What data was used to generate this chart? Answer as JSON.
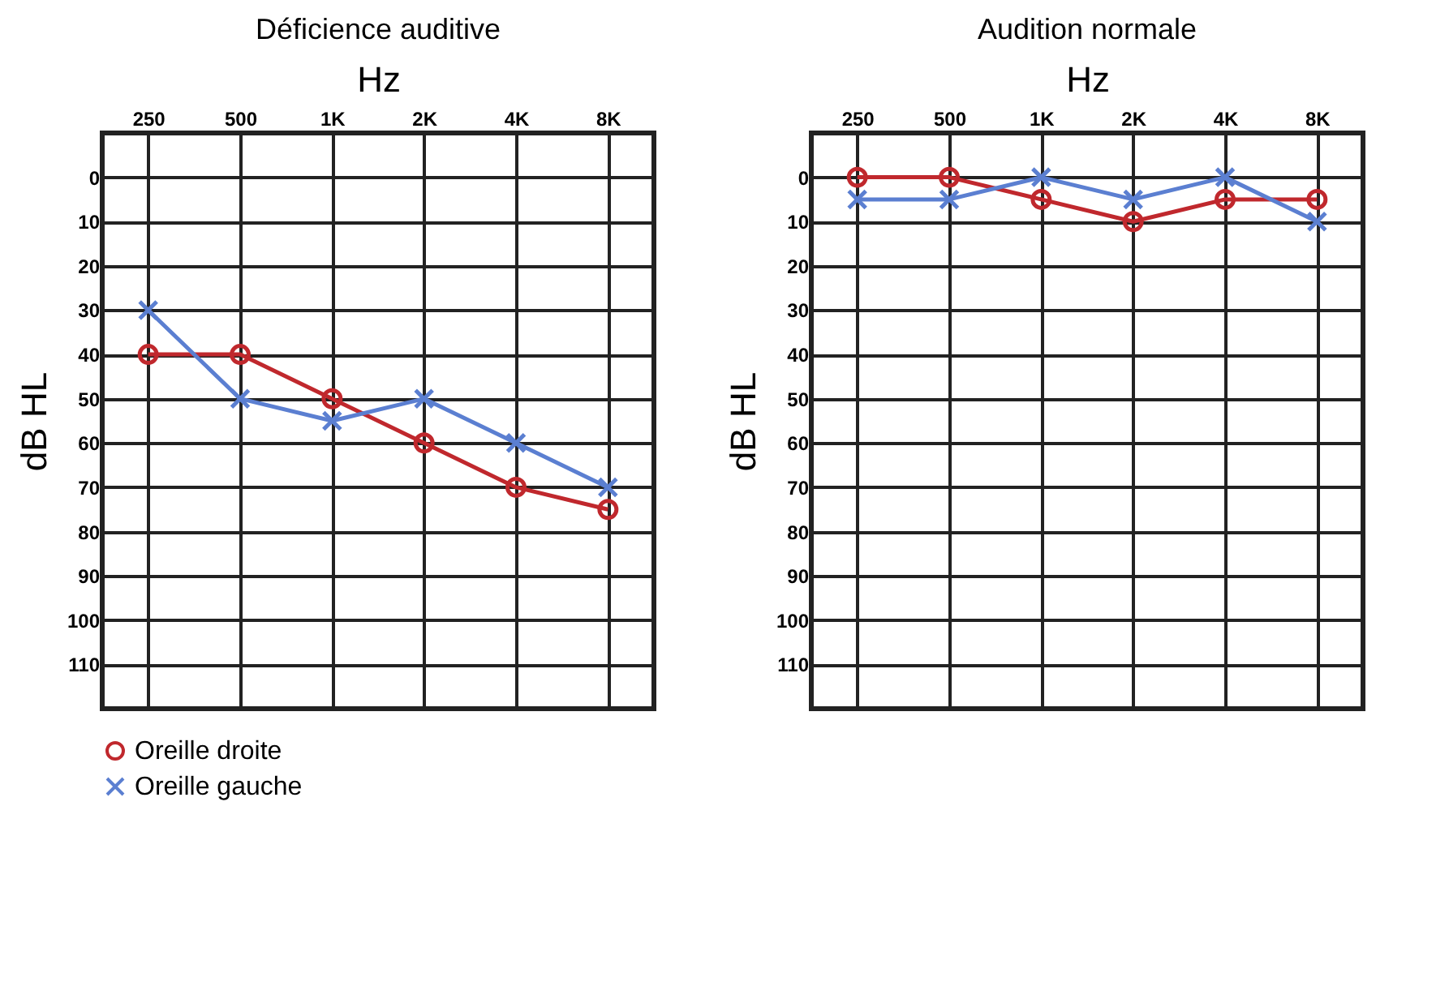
{
  "chart_data": [
    {
      "type": "line",
      "title": "Déficience auditive",
      "xlabel": "Hz",
      "ylabel": "dB HL",
      "categories": [
        "250",
        "500",
        "1K",
        "2K",
        "4K",
        "8K"
      ],
      "ylim": [
        120,
        -10
      ],
      "yticks": [
        0,
        10,
        20,
        30,
        40,
        50,
        60,
        70,
        80,
        90,
        100,
        110
      ],
      "grid": true,
      "legend": "bottom left",
      "series": [
        {
          "name": "Oreille droite",
          "color": "#c0282d",
          "marker": "circle",
          "values": [
            40,
            40,
            50,
            60,
            70,
            75
          ]
        },
        {
          "name": "Oreille gauche",
          "color": "#5b7fd1",
          "marker": "cross",
          "values": [
            30,
            50,
            55,
            50,
            60,
            70
          ]
        }
      ]
    },
    {
      "type": "line",
      "title": "Audition normale",
      "xlabel": "Hz",
      "ylabel": "dB HL",
      "categories": [
        "250",
        "500",
        "1K",
        "2K",
        "4K",
        "8K"
      ],
      "ylim": [
        120,
        -10
      ],
      "yticks": [
        0,
        10,
        20,
        30,
        40,
        50,
        60,
        70,
        80,
        90,
        100,
        110
      ],
      "grid": true,
      "series": [
        {
          "color": "#c0282d",
          "marker": "circle",
          "values": [
            0,
            0,
            5,
            10,
            5,
            5
          ]
        },
        {
          "color": "#5b7fd1",
          "marker": "cross",
          "values": [
            5,
            5,
            0,
            5,
            0,
            10
          ]
        }
      ]
    }
  ]
}
